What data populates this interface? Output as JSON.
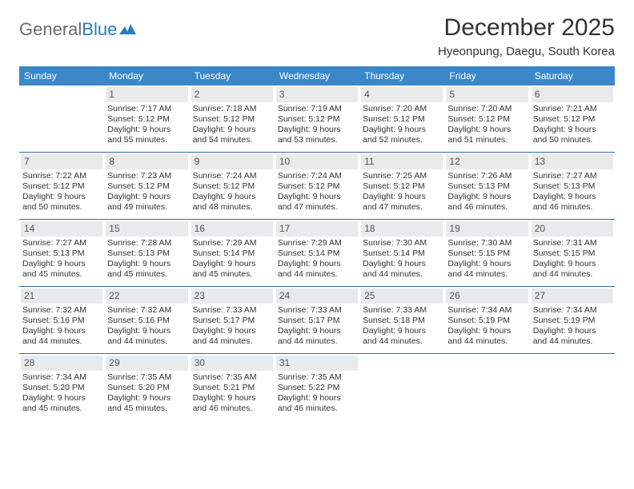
{
  "logo": {
    "text_a": "General",
    "text_b": "Blue"
  },
  "title": "December 2025",
  "location": "Hyeonpung, Daegu, South Korea",
  "colors": {
    "header_bg": "#3b87c8",
    "header_text": "#ffffff",
    "daynum_bg": "#e9eaeb",
    "week_border": "#2d6ea8",
    "logo_gray": "#6b6b6b",
    "logo_blue": "#2a7bbf"
  },
  "dow": [
    "Sunday",
    "Monday",
    "Tuesday",
    "Wednesday",
    "Thursday",
    "Friday",
    "Saturday"
  ],
  "weeks": [
    [
      {
        "n": "",
        "sr": "",
        "ss": "",
        "d1": "",
        "d2": "",
        "empty": true
      },
      {
        "n": "1",
        "sr": "Sunrise: 7:17 AM",
        "ss": "Sunset: 5:12 PM",
        "d1": "Daylight: 9 hours",
        "d2": "and 55 minutes."
      },
      {
        "n": "2",
        "sr": "Sunrise: 7:18 AM",
        "ss": "Sunset: 5:12 PM",
        "d1": "Daylight: 9 hours",
        "d2": "and 54 minutes."
      },
      {
        "n": "3",
        "sr": "Sunrise: 7:19 AM",
        "ss": "Sunset: 5:12 PM",
        "d1": "Daylight: 9 hours",
        "d2": "and 53 minutes."
      },
      {
        "n": "4",
        "sr": "Sunrise: 7:20 AM",
        "ss": "Sunset: 5:12 PM",
        "d1": "Daylight: 9 hours",
        "d2": "and 52 minutes."
      },
      {
        "n": "5",
        "sr": "Sunrise: 7:20 AM",
        "ss": "Sunset: 5:12 PM",
        "d1": "Daylight: 9 hours",
        "d2": "and 51 minutes."
      },
      {
        "n": "6",
        "sr": "Sunrise: 7:21 AM",
        "ss": "Sunset: 5:12 PM",
        "d1": "Daylight: 9 hours",
        "d2": "and 50 minutes."
      }
    ],
    [
      {
        "n": "7",
        "sr": "Sunrise: 7:22 AM",
        "ss": "Sunset: 5:12 PM",
        "d1": "Daylight: 9 hours",
        "d2": "and 50 minutes."
      },
      {
        "n": "8",
        "sr": "Sunrise: 7:23 AM",
        "ss": "Sunset: 5:12 PM",
        "d1": "Daylight: 9 hours",
        "d2": "and 49 minutes."
      },
      {
        "n": "9",
        "sr": "Sunrise: 7:24 AM",
        "ss": "Sunset: 5:12 PM",
        "d1": "Daylight: 9 hours",
        "d2": "and 48 minutes."
      },
      {
        "n": "10",
        "sr": "Sunrise: 7:24 AM",
        "ss": "Sunset: 5:12 PM",
        "d1": "Daylight: 9 hours",
        "d2": "and 47 minutes."
      },
      {
        "n": "11",
        "sr": "Sunrise: 7:25 AM",
        "ss": "Sunset: 5:12 PM",
        "d1": "Daylight: 9 hours",
        "d2": "and 47 minutes."
      },
      {
        "n": "12",
        "sr": "Sunrise: 7:26 AM",
        "ss": "Sunset: 5:13 PM",
        "d1": "Daylight: 9 hours",
        "d2": "and 46 minutes."
      },
      {
        "n": "13",
        "sr": "Sunrise: 7:27 AM",
        "ss": "Sunset: 5:13 PM",
        "d1": "Daylight: 9 hours",
        "d2": "and 46 minutes."
      }
    ],
    [
      {
        "n": "14",
        "sr": "Sunrise: 7:27 AM",
        "ss": "Sunset: 5:13 PM",
        "d1": "Daylight: 9 hours",
        "d2": "and 45 minutes."
      },
      {
        "n": "15",
        "sr": "Sunrise: 7:28 AM",
        "ss": "Sunset: 5:13 PM",
        "d1": "Daylight: 9 hours",
        "d2": "and 45 minutes."
      },
      {
        "n": "16",
        "sr": "Sunrise: 7:29 AM",
        "ss": "Sunset: 5:14 PM",
        "d1": "Daylight: 9 hours",
        "d2": "and 45 minutes."
      },
      {
        "n": "17",
        "sr": "Sunrise: 7:29 AM",
        "ss": "Sunset: 5:14 PM",
        "d1": "Daylight: 9 hours",
        "d2": "and 44 minutes."
      },
      {
        "n": "18",
        "sr": "Sunrise: 7:30 AM",
        "ss": "Sunset: 5:14 PM",
        "d1": "Daylight: 9 hours",
        "d2": "and 44 minutes."
      },
      {
        "n": "19",
        "sr": "Sunrise: 7:30 AM",
        "ss": "Sunset: 5:15 PM",
        "d1": "Daylight: 9 hours",
        "d2": "and 44 minutes."
      },
      {
        "n": "20",
        "sr": "Sunrise: 7:31 AM",
        "ss": "Sunset: 5:15 PM",
        "d1": "Daylight: 9 hours",
        "d2": "and 44 minutes."
      }
    ],
    [
      {
        "n": "21",
        "sr": "Sunrise: 7:32 AM",
        "ss": "Sunset: 5:16 PM",
        "d1": "Daylight: 9 hours",
        "d2": "and 44 minutes."
      },
      {
        "n": "22",
        "sr": "Sunrise: 7:32 AM",
        "ss": "Sunset: 5:16 PM",
        "d1": "Daylight: 9 hours",
        "d2": "and 44 minutes."
      },
      {
        "n": "23",
        "sr": "Sunrise: 7:33 AM",
        "ss": "Sunset: 5:17 PM",
        "d1": "Daylight: 9 hours",
        "d2": "and 44 minutes."
      },
      {
        "n": "24",
        "sr": "Sunrise: 7:33 AM",
        "ss": "Sunset: 5:17 PM",
        "d1": "Daylight: 9 hours",
        "d2": "and 44 minutes."
      },
      {
        "n": "25",
        "sr": "Sunrise: 7:33 AM",
        "ss": "Sunset: 5:18 PM",
        "d1": "Daylight: 9 hours",
        "d2": "and 44 minutes."
      },
      {
        "n": "26",
        "sr": "Sunrise: 7:34 AM",
        "ss": "Sunset: 5:19 PM",
        "d1": "Daylight: 9 hours",
        "d2": "and 44 minutes."
      },
      {
        "n": "27",
        "sr": "Sunrise: 7:34 AM",
        "ss": "Sunset: 5:19 PM",
        "d1": "Daylight: 9 hours",
        "d2": "and 44 minutes."
      }
    ],
    [
      {
        "n": "28",
        "sr": "Sunrise: 7:34 AM",
        "ss": "Sunset: 5:20 PM",
        "d1": "Daylight: 9 hours",
        "d2": "and 45 minutes."
      },
      {
        "n": "29",
        "sr": "Sunrise: 7:35 AM",
        "ss": "Sunset: 5:20 PM",
        "d1": "Daylight: 9 hours",
        "d2": "and 45 minutes."
      },
      {
        "n": "30",
        "sr": "Sunrise: 7:35 AM",
        "ss": "Sunset: 5:21 PM",
        "d1": "Daylight: 9 hours",
        "d2": "and 46 minutes."
      },
      {
        "n": "31",
        "sr": "Sunrise: 7:35 AM",
        "ss": "Sunset: 5:22 PM",
        "d1": "Daylight: 9 hours",
        "d2": "and 46 minutes."
      },
      {
        "n": "",
        "sr": "",
        "ss": "",
        "d1": "",
        "d2": "",
        "empty": true
      },
      {
        "n": "",
        "sr": "",
        "ss": "",
        "d1": "",
        "d2": "",
        "empty": true
      },
      {
        "n": "",
        "sr": "",
        "ss": "",
        "d1": "",
        "d2": "",
        "empty": true
      }
    ]
  ]
}
